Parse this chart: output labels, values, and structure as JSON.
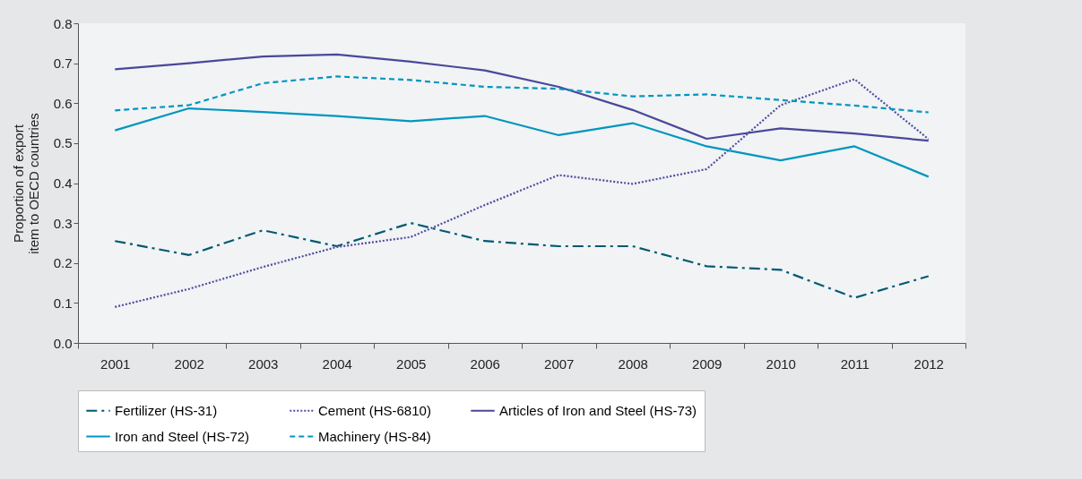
{
  "chart_data": {
    "type": "line",
    "ylabel": "Proportion of export item to OECD countries",
    "categories": [
      "2001",
      "2002",
      "2003",
      "2004",
      "2005",
      "2006",
      "2007",
      "2008",
      "2009",
      "2010",
      "2011",
      "2012"
    ],
    "ylim": [
      0,
      0.8
    ],
    "yticks": [
      {
        "value": 0,
        "label": "0.0"
      },
      0.1,
      0.2,
      0.3,
      0.4,
      0.5,
      0.6,
      0.7,
      0.8
    ],
    "grid": false,
    "legend": "bottom",
    "marker": "none",
    "series": [
      {
        "name": "Fertilizer (HS-31)",
        "color": "#005a70",
        "line_style": "dashdot",
        "values": [
          0.255,
          0.22,
          0.282,
          0.242,
          0.3,
          0.255,
          0.242,
          0.242,
          0.192,
          0.183,
          0.113,
          0.167
        ]
      },
      {
        "name": "Cement (HS-6810)",
        "color": "#4f4b9e",
        "line_style": "dotted",
        "values": [
          0.09,
          0.135,
          0.19,
          0.24,
          0.265,
          0.345,
          0.42,
          0.398,
          0.435,
          0.595,
          0.66,
          0.51
        ]
      },
      {
        "name": "Articles of Iron and Steel (HS-73)",
        "color": "#4a479a",
        "line_style": "solid",
        "values": [
          0.685,
          0.7,
          0.717,
          0.722,
          0.704,
          0.682,
          0.641,
          0.583,
          0.511,
          0.537,
          0.524,
          0.506
        ]
      },
      {
        "name": "Iron and Steel (HS-72)",
        "color": "#0096bf",
        "line_style": "solid",
        "values": [
          0.532,
          0.587,
          0.578,
          0.568,
          0.555,
          0.568,
          0.52,
          0.55,
          0.492,
          0.457,
          0.492,
          0.416
        ]
      },
      {
        "name": "Machinery (HS-84)",
        "color": "#0096bf",
        "line_style": "dashed",
        "values": [
          0.582,
          0.595,
          0.65,
          0.667,
          0.658,
          0.641,
          0.636,
          0.617,
          0.622,
          0.608,
          0.594,
          0.577
        ]
      }
    ]
  }
}
